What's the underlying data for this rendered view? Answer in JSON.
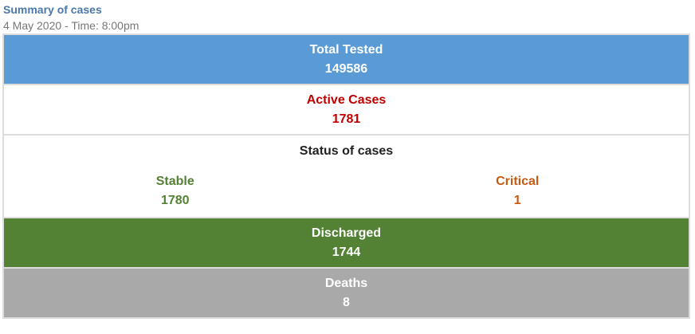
{
  "header": {
    "title": "Summary of cases",
    "date": "4 May 2020 - Time: 8:00pm"
  },
  "total_tested": {
    "label": "Total Tested",
    "value": "149586"
  },
  "active": {
    "label": "Active Cases",
    "value": "1781"
  },
  "status": {
    "label": "Status of cases",
    "stable": {
      "label": "Stable",
      "value": "1780"
    },
    "critical": {
      "label": "Critical",
      "value": "1"
    }
  },
  "discharged": {
    "label": "Discharged",
    "value": "1744"
  },
  "deaths": {
    "label": "Deaths",
    "value": "8"
  },
  "colors": {
    "tested": "#5b9bd5",
    "active": "#c00000",
    "stable": "#548235",
    "critical": "#c55a11",
    "discharged": "#548235",
    "deaths": "#a9a9a9"
  }
}
